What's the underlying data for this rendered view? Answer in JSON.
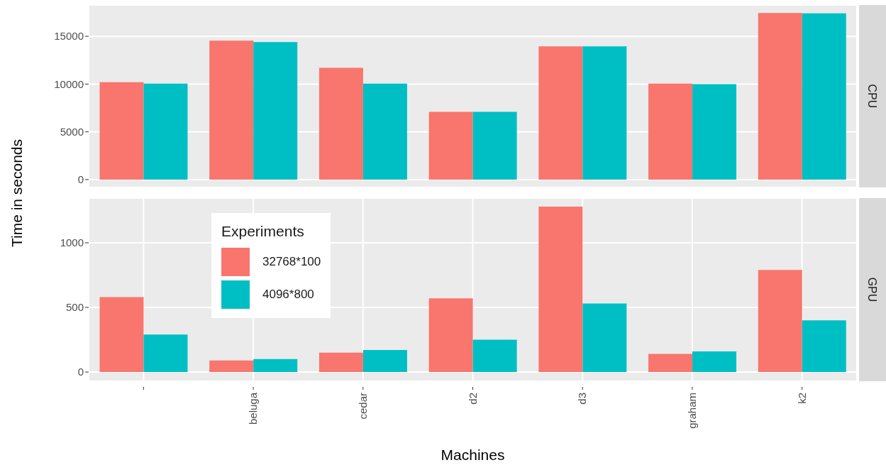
{
  "chart_data": [
    {
      "type": "bar",
      "y2label": "CPU",
      "ylabel": "Time in seconds",
      "categories": [
        null,
        null,
        null,
        null,
        null,
        null,
        null
      ],
      "series": [
        {
          "color": "#f8766d",
          "values": [
            10200,
            14550,
            11700,
            7100,
            13950,
            10050,
            17450
          ]
        },
        {
          "color": "#00bfc4",
          "values": [
            10050,
            14400,
            10050,
            7100,
            13950,
            10000,
            17400
          ]
        }
      ],
      "ylim": [
        -820,
        18280
      ],
      "yticks": [
        0,
        5000,
        10000,
        15000
      ],
      "grid": true,
      "tick_labels": "y"
    },
    {
      "type": "bar",
      "y2label": "GPU",
      "xlabel": "Machines",
      "legend_title": "Experiments",
      "categories": [
        null,
        "beluga",
        "cedar",
        "d2",
        "d3",
        "graham",
        "k2"
      ],
      "series": [
        {
          "name": "32768*100",
          "color": "#f8766d",
          "values": [
            580,
            90,
            150,
            570,
            1280,
            140,
            790
          ]
        },
        {
          "name": "4096*800",
          "color": "#00bfc4",
          "values": [
            290,
            100,
            170,
            250,
            530,
            160,
            400
          ]
        }
      ],
      "ylim": [
        -71,
        1346
      ],
      "yticks": [
        0,
        500,
        1000
      ],
      "grid": true,
      "legend": "top left"
    }
  ]
}
